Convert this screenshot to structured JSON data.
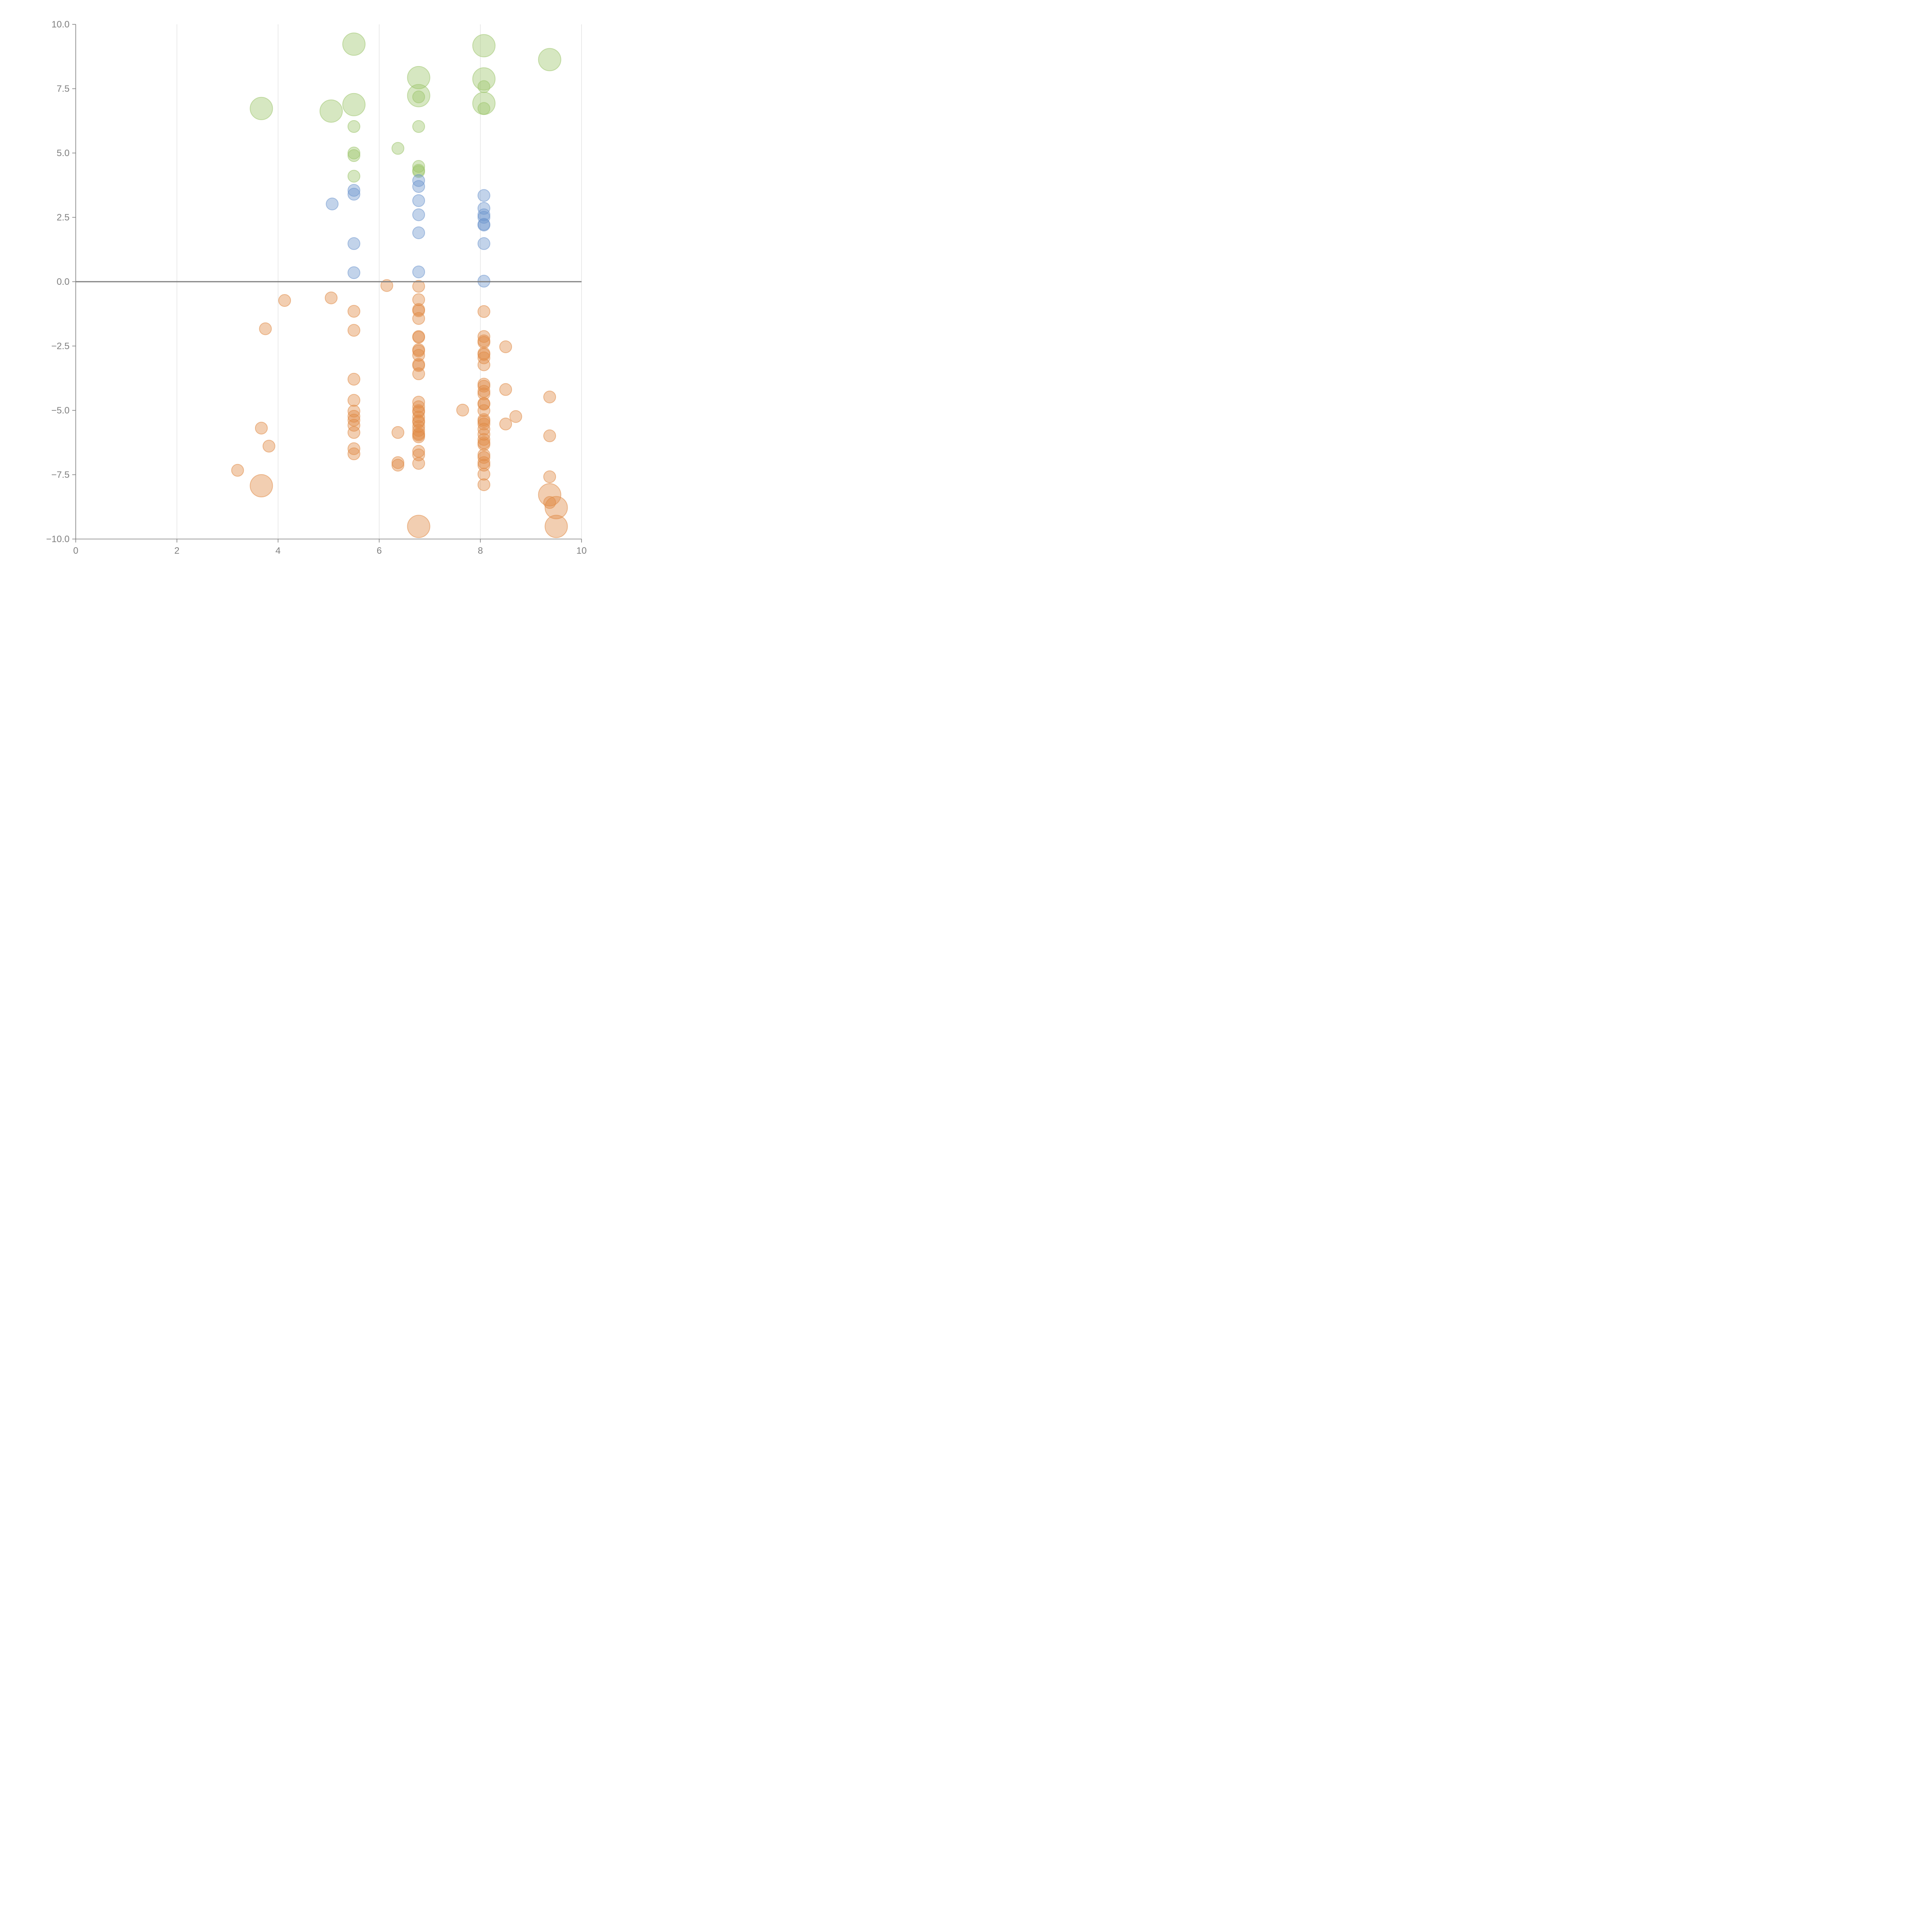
{
  "chart_data": {
    "type": "scatter",
    "title": "",
    "xlabel": "",
    "ylabel": "",
    "xlim": [
      0,
      10
    ],
    "ylim": [
      -10,
      10
    ],
    "x_ticks": [
      "0",
      "2",
      "4",
      "6",
      "8",
      "10"
    ],
    "y_ticks": [
      "10.0",
      "7.5",
      "5.0",
      "2.5",
      "0.0",
      "−2.5",
      "−5.0",
      "−7.5",
      "−10.0"
    ],
    "grid": "vertical",
    "reference_line_y": 0,
    "colors": {
      "green": "#9dc56c",
      "blue": "#6e95cd",
      "orange": "#e08b46",
      "axis": "#7f7f7f",
      "grid": "#dddddd"
    },
    "series": [
      {
        "color": "green",
        "points": [
          [
            5.5,
            9.23
          ],
          [
            8.07,
            9.17
          ],
          [
            9.37,
            8.63
          ],
          [
            6.78,
            7.93
          ],
          [
            8.07,
            7.88
          ],
          [
            6.78,
            7.23
          ],
          [
            8.07,
            6.93
          ],
          [
            3.67,
            6.73
          ],
          [
            5.05,
            6.63
          ],
          [
            5.5,
            6.88
          ],
          [
            8.07,
            7.58
          ],
          [
            6.78,
            7.18
          ],
          [
            8.07,
            6.73
          ],
          [
            5.5,
            6.03
          ],
          [
            6.78,
            6.03
          ],
          [
            6.37,
            5.18
          ],
          [
            5.5,
            5.0
          ],
          [
            5.5,
            4.9
          ],
          [
            6.78,
            4.48
          ],
          [
            6.78,
            4.33
          ],
          [
            6.78,
            4.28
          ],
          [
            5.5,
            4.1
          ]
        ],
        "sizes": [
          "l",
          "l",
          "l",
          "l",
          "l",
          "l",
          "l",
          "l",
          "l",
          "l",
          "s",
          "s",
          "s",
          "s",
          "s",
          "s",
          "s",
          "s",
          "s",
          "s",
          "s",
          "s"
        ]
      },
      {
        "color": "blue",
        "points": [
          [
            5.5,
            3.55
          ],
          [
            5.5,
            3.4
          ],
          [
            5.07,
            3.02
          ],
          [
            6.78,
            3.93
          ],
          [
            6.78,
            3.7
          ],
          [
            6.78,
            3.15
          ],
          [
            6.78,
            2.6
          ],
          [
            6.78,
            1.9
          ],
          [
            6.78,
            0.38
          ],
          [
            5.5,
            1.48
          ],
          [
            5.5,
            0.35
          ],
          [
            8.07,
            3.35
          ],
          [
            8.07,
            2.85
          ],
          [
            8.07,
            2.6
          ],
          [
            8.07,
            2.5
          ],
          [
            8.07,
            2.23
          ],
          [
            8.07,
            2.2
          ],
          [
            8.07,
            1.48
          ],
          [
            8.07,
            0.02
          ]
        ]
      },
      {
        "color": "orange",
        "points": [
          [
            6.15,
            -0.15
          ],
          [
            6.78,
            -0.18
          ],
          [
            5.05,
            -0.63
          ],
          [
            4.13,
            -0.73
          ],
          [
            6.78,
            -0.7
          ],
          [
            5.5,
            -1.15
          ],
          [
            6.78,
            -1.08
          ],
          [
            6.78,
            -1.13
          ],
          [
            6.78,
            -1.43
          ],
          [
            8.07,
            -1.16
          ],
          [
            3.75,
            -1.83
          ],
          [
            5.5,
            -1.89
          ],
          [
            6.78,
            -2.13
          ],
          [
            6.78,
            -2.16
          ],
          [
            8.07,
            -2.13
          ],
          [
            8.07,
            -2.3
          ],
          [
            8.07,
            -2.36
          ],
          [
            8.5,
            -2.53
          ],
          [
            6.78,
            -2.64
          ],
          [
            6.78,
            -2.69
          ],
          [
            6.78,
            -2.86
          ],
          [
            8.07,
            -2.78
          ],
          [
            8.07,
            -2.83
          ],
          [
            8.07,
            -2.96
          ],
          [
            6.78,
            -3.21
          ],
          [
            6.78,
            -3.26
          ],
          [
            8.07,
            -3.23
          ],
          [
            6.78,
            -3.58
          ],
          [
            5.5,
            -3.79
          ],
          [
            8.07,
            -3.98
          ],
          [
            8.07,
            -4.06
          ],
          [
            8.07,
            -4.26
          ],
          [
            8.5,
            -4.19
          ],
          [
            8.07,
            -4.36
          ],
          [
            9.37,
            -4.48
          ],
          [
            5.5,
            -4.61
          ],
          [
            6.78,
            -4.68
          ],
          [
            6.78,
            -4.86
          ],
          [
            8.07,
            -4.73
          ],
          [
            8.07,
            -4.76
          ],
          [
            6.78,
            -5.01
          ],
          [
            6.78,
            -5.06
          ],
          [
            5.5,
            -5.03
          ],
          [
            7.65,
            -4.99
          ],
          [
            8.07,
            -5.01
          ],
          [
            5.5,
            -5.23
          ],
          [
            6.78,
            -5.26
          ],
          [
            8.7,
            -5.24
          ],
          [
            5.5,
            -5.38
          ],
          [
            6.78,
            -5.41
          ],
          [
            6.78,
            -5.46
          ],
          [
            8.07,
            -5.36
          ],
          [
            8.07,
            -5.43
          ],
          [
            8.07,
            -5.53
          ],
          [
            5.5,
            -5.58
          ],
          [
            6.78,
            -5.63
          ],
          [
            8.5,
            -5.53
          ],
          [
            8.07,
            -5.73
          ],
          [
            3.67,
            -5.69
          ],
          [
            6.78,
            -5.78
          ],
          [
            5.5,
            -5.86
          ],
          [
            6.37,
            -5.86
          ],
          [
            6.78,
            -5.91
          ],
          [
            8.07,
            -5.93
          ],
          [
            6.78,
            -5.96
          ],
          [
            6.78,
            -6.03
          ],
          [
            9.37,
            -5.99
          ],
          [
            8.07,
            -6.13
          ],
          [
            8.07,
            -6.26
          ],
          [
            8.07,
            -6.33
          ],
          [
            3.82,
            -6.39
          ],
          [
            5.5,
            -6.49
          ],
          [
            6.78,
            -6.59
          ],
          [
            5.5,
            -6.69
          ],
          [
            6.78,
            -6.73
          ],
          [
            8.07,
            -6.73
          ],
          [
            8.07,
            -6.83
          ],
          [
            6.37,
            -7.03
          ],
          [
            6.78,
            -7.06
          ],
          [
            8.07,
            -7.03
          ],
          [
            6.37,
            -7.13
          ],
          [
            8.07,
            -7.13
          ],
          [
            3.2,
            -7.33
          ],
          [
            8.07,
            -7.48
          ],
          [
            9.37,
            -7.58
          ],
          [
            8.07,
            -7.89
          ],
          [
            9.37,
            -8.58
          ]
        ],
        "big_points": [
          [
            3.67,
            -7.93
          ],
          [
            9.37,
            -8.28
          ],
          [
            9.5,
            -8.78
          ],
          [
            6.78,
            -9.51
          ],
          [
            9.5,
            -9.51
          ]
        ]
      }
    ]
  }
}
